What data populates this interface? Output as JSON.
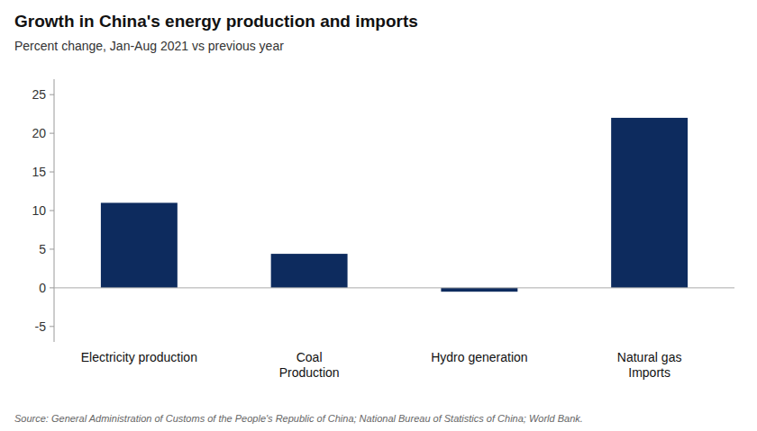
{
  "chart_data": {
    "type": "bar",
    "title": "Growth in China's energy production and imports",
    "subtitle": "Percent change, Jan-Aug 2021 vs previous year",
    "source": "Source: General Administration of Customs of the People's Republic of China; National Bureau of Statistics of China; World Bank.",
    "categories": [
      "Electricity production",
      "Coal\nProduction",
      "Hydro generation",
      "Natural gas\nImports"
    ],
    "values": [
      11.0,
      4.4,
      -0.5,
      22.0
    ],
    "color": "#0d2b5e",
    "ylim": [
      -7,
      27
    ],
    "yticks": [
      -5,
      0,
      5,
      10,
      15,
      20,
      25
    ],
    "grid": false
  }
}
